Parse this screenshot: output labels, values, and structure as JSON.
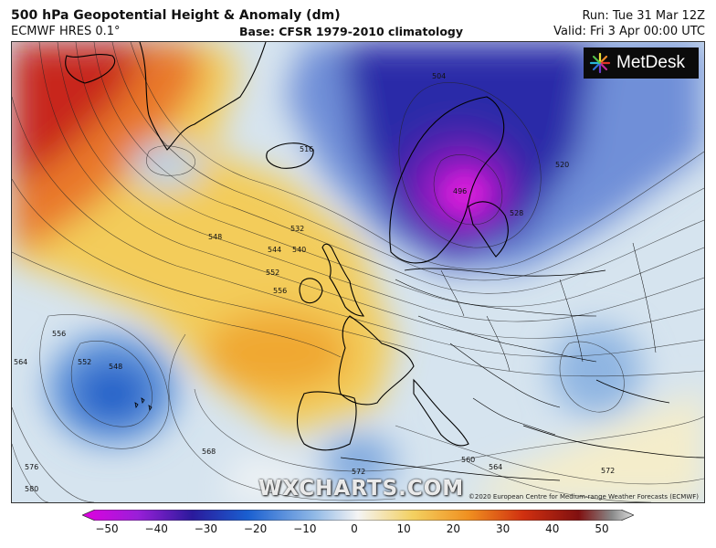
{
  "header": {
    "title": "500 hPa Geopotential Height & Anomaly (dm)",
    "model": "ECMWF HRES 0.1°",
    "base": "Base: CFSR 1979-2010 climatology",
    "run": "Run: Tue 31 Mar 12Z",
    "valid": "Valid: Fri 3 Apr 00:00 UTC"
  },
  "logo": {
    "text": "MetDesk",
    "icon": "metdesk-logo-icon"
  },
  "watermark": "WXCHARTS.COM",
  "copyright": "©2020 European Centre for Medium-range Weather Forecasts (ECMWF)",
  "contour_labels": [
    "516",
    "520",
    "528",
    "532",
    "540",
    "544",
    "548",
    "552",
    "556",
    "560",
    "564",
    "568",
    "572",
    "576",
    "580",
    "496",
    "504",
    "548",
    "552",
    "556",
    "564",
    "572"
  ],
  "colorbar": {
    "min": -50,
    "max": 50,
    "ticks": [
      "−50",
      "−40",
      "−30",
      "−20",
      "−10",
      "0",
      "10",
      "20",
      "30",
      "40",
      "50"
    ],
    "colors": [
      "#cc00cc",
      "#8a1fd0",
      "#2a1a9c",
      "#1a5fd0",
      "#6aa5e0",
      "#f4f4f4",
      "#f0d060",
      "#f09020",
      "#d03010",
      "#901010",
      "#c0c0c0"
    ]
  }
}
